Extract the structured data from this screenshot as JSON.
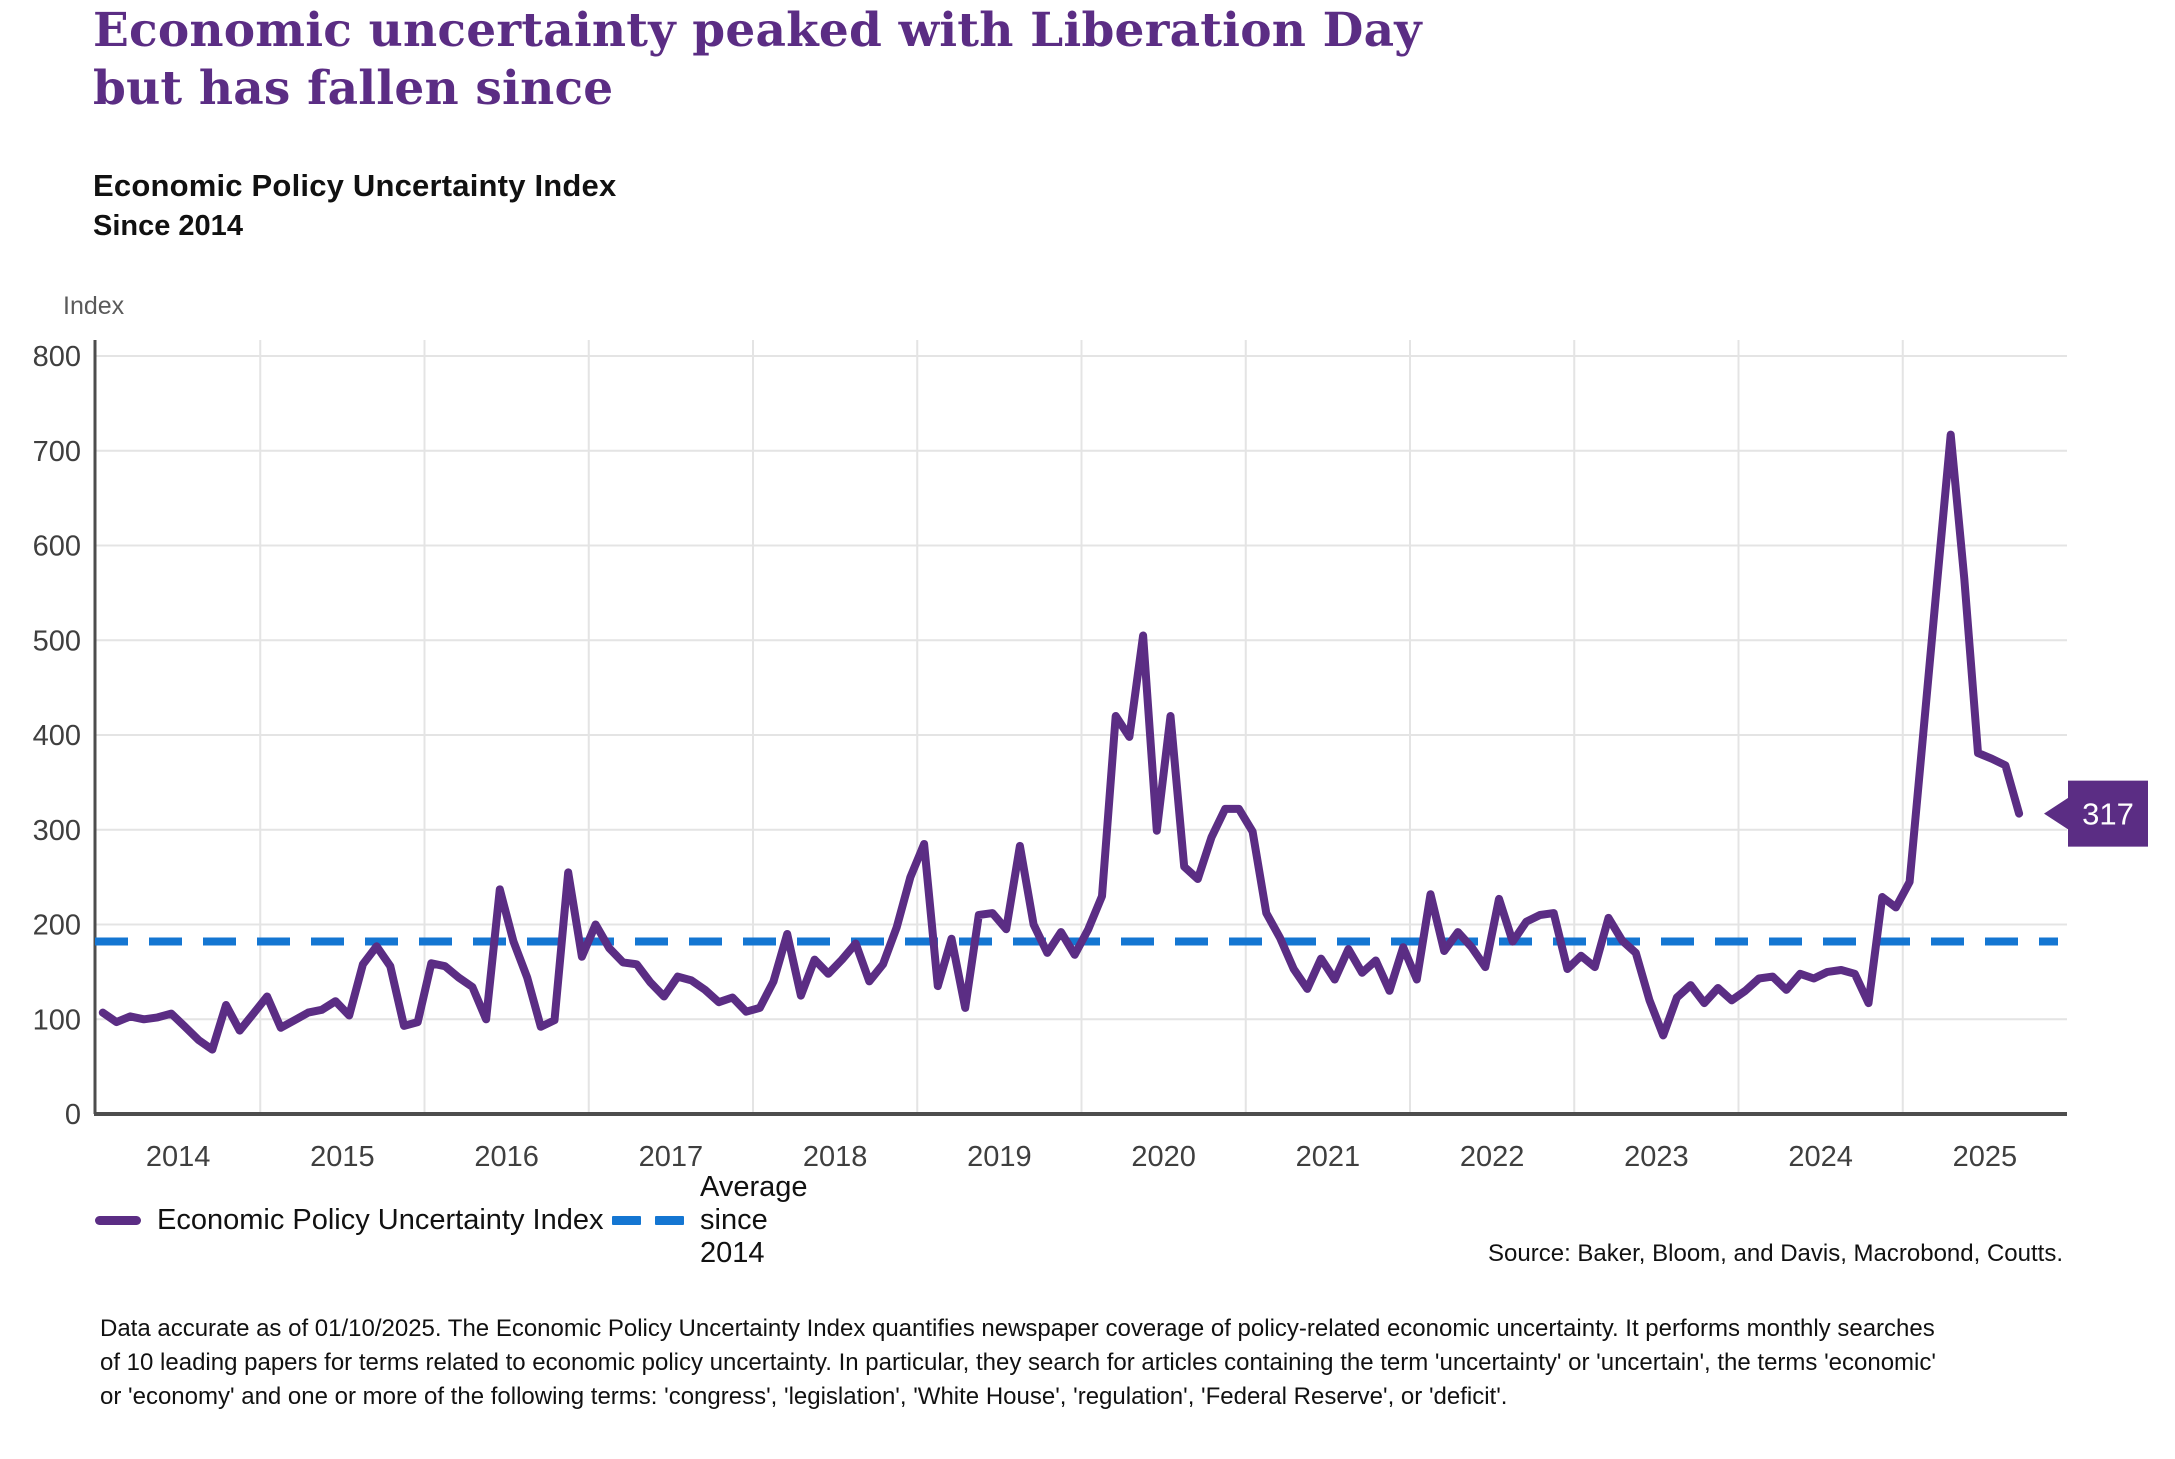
{
  "title": {
    "line1": "Economic uncertainty peaked with Liberation Day",
    "line2": "but has fallen since"
  },
  "subtitle": "Economic Policy Uncertainty Index",
  "subtitle2": "Since 2014",
  "axis_unit_label": "Index",
  "colors": {
    "line": "#5b2d84",
    "average": "#1476d2",
    "grid": "#e4e4e4",
    "axis": "#4d4d4d",
    "callout_bg": "#5b2d84",
    "callout_text": "#ffffff"
  },
  "chart_data": {
    "type": "line",
    "title": "Economic Policy Uncertainty Index",
    "xlabel": "",
    "ylabel": "Index",
    "ylim": [
      0,
      800
    ],
    "grid": true,
    "legend_position": "bottom-left",
    "y_ticks": [
      "0",
      "100",
      "200",
      "300",
      "400",
      "500",
      "600",
      "700",
      "800"
    ],
    "x_tick_labels": [
      "2014",
      "2015",
      "2016",
      "2017",
      "2018",
      "2019",
      "2020",
      "2021",
      "2022",
      "2023",
      "2024",
      "2025"
    ],
    "x_start": "2014-01",
    "frequency": "monthly",
    "series": [
      {
        "name": "Economic Policy Uncertainty Index",
        "color": "#5b2d84",
        "style": "solid",
        "values": [
          107,
          97,
          103,
          100,
          102,
          106,
          92,
          78,
          68,
          115,
          88,
          106,
          124,
          91,
          99,
          107,
          110,
          119,
          104,
          158,
          177,
          156,
          93,
          97,
          159,
          156,
          144,
          134,
          100,
          237,
          182,
          144,
          92,
          99,
          255,
          166,
          200,
          175,
          160,
          158,
          139,
          124,
          145,
          141,
          131,
          118,
          123,
          108,
          112,
          140,
          190,
          125,
          163,
          148,
          163,
          180,
          140,
          158,
          197,
          250,
          285,
          135,
          185,
          112,
          210,
          212,
          195,
          283,
          200,
          170,
          192,
          168,
          195,
          230,
          420,
          398,
          505,
          299,
          420,
          261,
          248,
          292,
          322,
          322,
          298,
          212,
          186,
          153,
          132,
          164,
          142,
          174,
          149,
          162,
          130,
          176,
          142,
          232,
          172,
          192,
          176,
          155,
          227,
          182,
          203,
          210,
          212,
          153,
          167,
          155,
          207,
          183,
          170,
          120,
          83,
          123,
          136,
          117,
          133,
          120,
          130,
          143,
          145,
          131,
          148,
          143,
          150,
          152,
          148,
          117,
          229,
          218,
          245,
          402,
          560,
          717,
          565,
          381,
          375,
          368,
          317
        ]
      },
      {
        "name": "Average since 2014",
        "color": "#1476d2",
        "style": "dashed",
        "value": 182
      }
    ],
    "last_value_label": "317"
  },
  "legend": {
    "epu_label": "Economic Policy Uncertainty Index",
    "average_label": "Average since 2014"
  },
  "source": "Source: Baker, Bloom, and Davis, Macrobond, Coutts.",
  "footnote": {
    "line1": "Data accurate as of 01/10/2025. The Economic Policy Uncertainty Index quantifies newspaper coverage of policy-related economic uncertainty. It performs monthly searches",
    "line2": "of 10 leading papers for terms related to economic policy uncertainty. In particular, they search for articles containing the term 'uncertainty' or 'uncertain', the terms 'economic'",
    "line3": "or 'economy' and one or more of the following terms: 'congress', 'legislation', 'White House', 'regulation', 'Federal Reserve', or 'deficit'."
  }
}
